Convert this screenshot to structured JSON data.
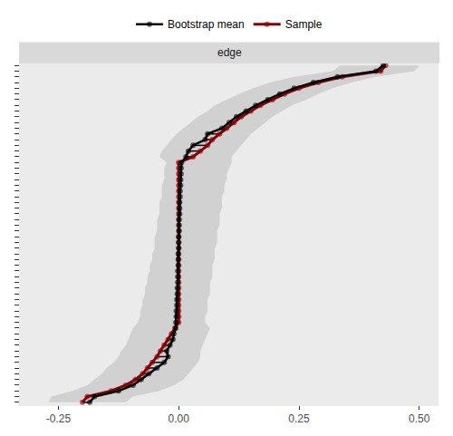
{
  "chart_data": {
    "type": "line",
    "orientation": "horizontal",
    "panel_title": "edge",
    "legend": "top",
    "grid": false,
    "tick_labels": "x",
    "xlim": [
      -0.33,
      0.54
    ],
    "xticks": [
      {
        "value": -0.25,
        "label": "-0.25"
      },
      {
        "value": 0,
        "label": "0.00"
      },
      {
        "value": 0.25,
        "label": "0.25"
      },
      {
        "value": 0.5,
        "label": "0.50"
      }
    ],
    "categories": [
      null,
      null,
      null,
      null,
      null,
      null,
      null,
      null,
      null,
      null,
      null,
      null,
      null,
      null,
      null,
      null,
      null,
      null,
      null,
      null,
      null,
      null,
      null,
      null,
      null,
      null,
      null,
      null,
      null,
      null,
      null,
      null,
      null,
      null,
      null,
      null,
      null,
      null,
      null,
      null,
      null,
      null,
      null,
      null,
      null,
      null,
      null,
      null,
      null,
      null,
      null,
      null,
      null,
      null,
      null,
      null,
      null,
      null,
      null,
      null
    ],
    "series": [
      {
        "name": "Bootstrap mean",
        "color": "#000000",
        "marker": "circle",
        "values": [
          -0.185,
          -0.175,
          -0.125,
          -0.095,
          -0.078,
          -0.062,
          -0.045,
          -0.03,
          -0.022,
          -0.025,
          -0.018,
          -0.012,
          -0.01,
          -0.006,
          -0.006,
          -0.005,
          -0.005,
          -0.004,
          -0.004,
          -0.003,
          -0.003,
          -0.002,
          -0.002,
          -0.002,
          -0.001,
          -0.001,
          -0.001,
          0,
          0,
          0,
          0.001,
          0.001,
          0.001,
          0.002,
          0.002,
          0.002,
          0.003,
          0.003,
          0.004,
          0.004,
          0.005,
          0.005,
          0.006,
          0.015,
          0.02,
          0.03,
          0.055,
          0.06,
          0.09,
          0.105,
          0.12,
          0.14,
          0.16,
          0.185,
          0.21,
          0.24,
          0.28,
          0.33,
          0.41,
          0.425
        ],
        "lower": [
          -0.27,
          -0.265,
          -0.22,
          -0.19,
          -0.175,
          -0.16,
          -0.15,
          -0.135,
          -0.125,
          -0.12,
          -0.11,
          -0.105,
          -0.1,
          -0.095,
          -0.085,
          -0.08,
          -0.08,
          -0.075,
          -0.075,
          -0.07,
          -0.07,
          -0.065,
          -0.065,
          -0.06,
          -0.06,
          -0.055,
          -0.055,
          -0.05,
          -0.05,
          -0.05,
          -0.045,
          -0.045,
          -0.045,
          -0.04,
          -0.04,
          -0.04,
          -0.035,
          -0.035,
          -0.035,
          -0.03,
          -0.03,
          -0.03,
          -0.025,
          -0.04,
          -0.035,
          -0.025,
          -0.015,
          -0.005,
          0.01,
          0.025,
          0.04,
          0.06,
          0.075,
          0.1,
          0.125,
          0.155,
          0.19,
          0.24,
          0.32,
          0.335
        ],
        "upper": [
          -0.11,
          -0.095,
          -0.04,
          -0.01,
          0.01,
          0.02,
          0.03,
          0.04,
          0.045,
          0.045,
          0.05,
          0.055,
          0.06,
          0.065,
          0.055,
          0.055,
          0.06,
          0.06,
          0.06,
          0.065,
          0.065,
          0.065,
          0.07,
          0.07,
          0.07,
          0.075,
          0.075,
          0.075,
          0.08,
          0.08,
          0.08,
          0.085,
          0.085,
          0.085,
          0.09,
          0.09,
          0.09,
          0.095,
          0.095,
          0.1,
          0.1,
          0.105,
          0.11,
          0.11,
          0.12,
          0.13,
          0.14,
          0.15,
          0.165,
          0.18,
          0.195,
          0.215,
          0.235,
          0.265,
          0.29,
          0.32,
          0.36,
          0.41,
          0.49,
          0.5
        ]
      },
      {
        "name": "Sample",
        "color": "#8b0000",
        "marker": "circle",
        "values": [
          -0.2,
          -0.19,
          -0.14,
          -0.11,
          -0.09,
          -0.075,
          -0.065,
          -0.055,
          -0.045,
          -0.038,
          -0.03,
          -0.022,
          -0.015,
          -0.008,
          0,
          0,
          0,
          0,
          0,
          0,
          0,
          0,
          0,
          0,
          0,
          0,
          0,
          0,
          0,
          0,
          0,
          0,
          0,
          0,
          0,
          0,
          0,
          0,
          0,
          0,
          0,
          0,
          0,
          0.03,
          0.045,
          0.06,
          0.07,
          0.085,
          0.1,
          0.115,
          0.13,
          0.15,
          0.17,
          0.195,
          0.22,
          0.25,
          0.29,
          0.34,
          0.42,
          0.43
        ]
      }
    ]
  }
}
